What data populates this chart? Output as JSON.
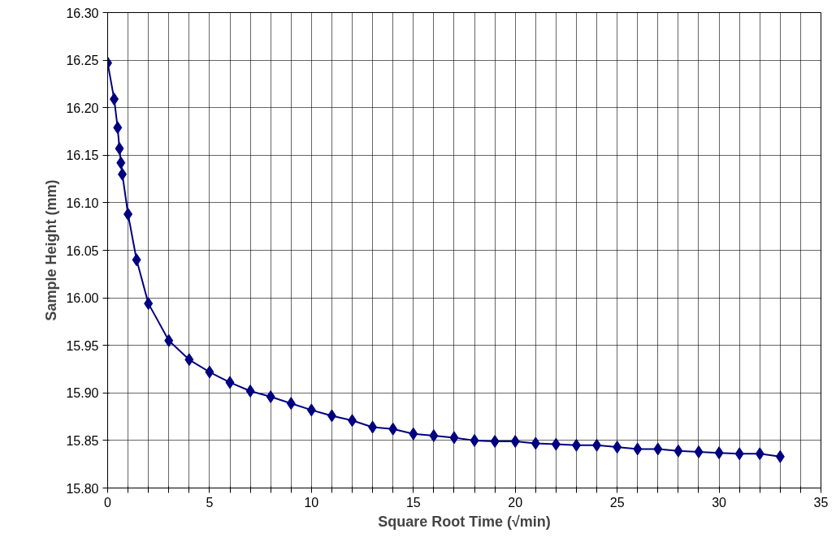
{
  "chart_data": {
    "type": "line",
    "xlabel": "Square Root Time (√min)",
    "ylabel": "Sample Height (mm)",
    "xlim": [
      0,
      35
    ],
    "ylim": [
      15.8,
      16.3
    ],
    "xticks": [
      0,
      {
        "value": 1,
        "label": null
      },
      {
        "value": 2,
        "label": null
      },
      {
        "value": 3,
        "label": null
      },
      {
        "value": 4,
        "label": null
      },
      5,
      {
        "value": 6,
        "label": null
      },
      {
        "value": 7,
        "label": null
      },
      {
        "value": 8,
        "label": null
      },
      {
        "value": 9,
        "label": null
      },
      10,
      {
        "value": 11,
        "label": null
      },
      {
        "value": 12,
        "label": null
      },
      {
        "value": 13,
        "label": null
      },
      {
        "value": 14,
        "label": null
      },
      15,
      {
        "value": 16,
        "label": null
      },
      {
        "value": 17,
        "label": null
      },
      {
        "value": 18,
        "label": null
      },
      {
        "value": 19,
        "label": null
      },
      20,
      {
        "value": 21,
        "label": null
      },
      {
        "value": 22,
        "label": null
      },
      {
        "value": 23,
        "label": null
      },
      {
        "value": 24,
        "label": null
      },
      25,
      {
        "value": 26,
        "label": null
      },
      {
        "value": 27,
        "label": null
      },
      {
        "value": 28,
        "label": null
      },
      {
        "value": 29,
        "label": null
      },
      30,
      {
        "value": 31,
        "label": null
      },
      {
        "value": 32,
        "label": null
      },
      {
        "value": 33,
        "label": null
      },
      {
        "value": 34,
        "label": null
      },
      35
    ],
    "yticks": [
      {
        "value": 15.8,
        "label": "15.80"
      },
      {
        "value": 15.85,
        "label": "15.85"
      },
      {
        "value": 15.9,
        "label": "15.90"
      },
      {
        "value": 15.95,
        "label": "15.95"
      },
      {
        "value": 16.0,
        "label": "16.00"
      },
      {
        "value": 16.05,
        "label": "16.05"
      },
      {
        "value": 16.1,
        "label": "16.10"
      },
      {
        "value": 16.15,
        "label": "16.15"
      },
      {
        "value": 16.2,
        "label": "16.20"
      },
      {
        "value": 16.25,
        "label": "16.25"
      },
      {
        "value": 16.3,
        "label": "16.30"
      }
    ],
    "grid": true,
    "marker": "diamond",
    "line_style": "solid",
    "x": [
      0,
      0.32,
      0.49,
      0.58,
      0.65,
      0.72,
      1.0,
      1.42,
      2,
      3,
      4,
      5,
      6,
      7,
      8,
      9,
      10,
      11,
      12,
      13,
      14,
      15,
      16,
      17,
      18,
      19,
      20,
      21,
      22,
      23,
      24,
      25,
      26,
      27,
      28,
      29,
      30,
      31,
      32,
      33
    ],
    "series": [
      {
        "color": "#000080",
        "values": [
          16.247,
          16.209,
          16.179,
          16.157,
          16.142,
          16.13,
          16.088,
          16.04,
          15.994,
          15.955,
          15.935,
          15.922,
          15.911,
          15.902,
          15.896,
          15.889,
          15.882,
          15.876,
          15.871,
          15.864,
          15.862,
          15.857,
          15.855,
          15.853,
          15.85,
          15.849,
          15.849,
          15.847,
          15.846,
          15.845,
          15.845,
          15.843,
          15.841,
          15.841,
          15.839,
          15.838,
          15.837,
          15.836,
          15.836,
          15.833
        ]
      }
    ]
  }
}
